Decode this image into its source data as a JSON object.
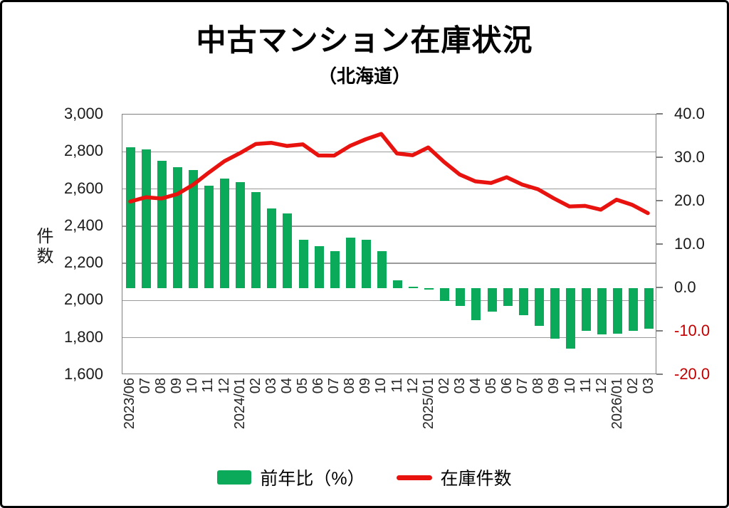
{
  "header": {
    "title": "中古マンション在庫状況",
    "subtitle": "（北海道）"
  },
  "chart_data": {
    "type": "combo",
    "subtypes": [
      "bar",
      "line"
    ],
    "title": "中古マンション在庫状況",
    "subtitle": "（北海道）",
    "categories": [
      "2023/06",
      "07",
      "08",
      "09",
      "10",
      "11",
      "12",
      "2024/01",
      "02",
      "03",
      "04",
      "05",
      "06",
      "07",
      "08",
      "09",
      "10",
      "11",
      "12",
      "2025/01",
      "02",
      "03",
      "04",
      "05",
      "06",
      "07",
      "08",
      "09",
      "10",
      "11",
      "12",
      "2026/01",
      "02",
      "03"
    ],
    "series": [
      {
        "name": "前年比（%）",
        "type": "bar",
        "axis": "right",
        "color": "#0ba95a",
        "values": [
          32.4,
          32.0,
          29.4,
          27.8,
          27.2,
          23.6,
          25.3,
          24.4,
          22.2,
          18.4,
          17.2,
          11.2,
          9.6,
          8.5,
          11.6,
          11.2,
          8.6,
          1.8,
          0.4,
          -0.4,
          -2.9,
          -4.1,
          -7.4,
          -5.4,
          -4.1,
          -6.2,
          -8.7,
          -11.7,
          -14.0,
          -9.9,
          -10.7,
          -10.5,
          -9.8,
          -9.4
        ]
      },
      {
        "name": "在庫件数",
        "type": "line",
        "axis": "left",
        "color": "#e8120f",
        "values": [
          2530,
          2553,
          2546,
          2570,
          2620,
          2686,
          2748,
          2792,
          2841,
          2847,
          2830,
          2839,
          2779,
          2778,
          2830,
          2866,
          2895,
          2790,
          2780,
          2822,
          2744,
          2676,
          2639,
          2630,
          2661,
          2621,
          2596,
          2547,
          2503,
          2506,
          2486,
          2540,
          2512,
          2467
        ]
      }
    ],
    "left_axis": {
      "label": "件数",
      "min": 1600,
      "max": 3000,
      "tick_interval": 200,
      "tick_values": [
        3000,
        2800,
        2600,
        2400,
        2200,
        2000,
        1800,
        1600
      ],
      "tick_labels": [
        "3,000",
        "2,800",
        "2,600",
        "2,400",
        "2,200",
        "2,000",
        "1,800",
        "1,600"
      ]
    },
    "right_axis": {
      "min": -20,
      "max": 40,
      "tick_interval": 10,
      "tick_values": [
        40,
        30,
        20,
        10,
        0,
        -10,
        -20
      ],
      "tick_labels": [
        "40.0",
        "30.0",
        "20.0",
        "10.0",
        "0.0",
        "-10.0",
        "-20.0"
      ],
      "negative_label_color": "#c00000"
    },
    "grid": true,
    "grid_color": "#9a9a9a",
    "legend_position": "bottom",
    "legend": [
      {
        "label": "前年比（%）",
        "swatch": "bar",
        "color": "#0ba95a"
      },
      {
        "label": "在庫件数",
        "swatch": "line",
        "color": "#e8120f"
      }
    ]
  }
}
